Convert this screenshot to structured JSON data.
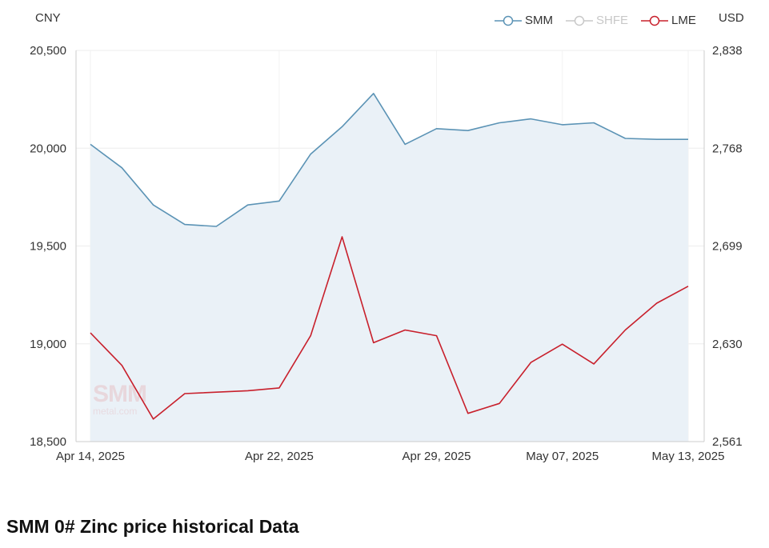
{
  "page": {
    "title": "SMM 0# Zinc price historical Data",
    "left_unit": "CNY",
    "right_unit": "USD",
    "watermark": {
      "main": "SMM",
      "sub": "metal.com"
    }
  },
  "legend": [
    {
      "label": "SMM",
      "color": "#5b93b5",
      "active": true
    },
    {
      "label": "SHFE",
      "color": "#c8c8c8",
      "active": false
    },
    {
      "label": "LME",
      "color": "#c8202c",
      "active": true
    }
  ],
  "chart_data": {
    "type": "line",
    "x": [
      "Apr 14, 2025",
      "Apr 15, 2025",
      "Apr 16, 2025",
      "Apr 17, 2025",
      "Apr 18, 2025",
      "Apr 21, 2025",
      "Apr 22, 2025",
      "Apr 23, 2025",
      "Apr 24, 2025",
      "Apr 25, 2025",
      "Apr 28, 2025",
      "Apr 29, 2025",
      "Apr 30, 2025",
      "May 05, 2025",
      "May 06, 2025",
      "May 07, 2025",
      "May 08, 2025",
      "May 09, 2025",
      "May 12, 2025",
      "May 13, 2025"
    ],
    "x_tick_labels": [
      "Apr 14, 2025",
      "Apr 22, 2025",
      "Apr 29, 2025",
      "May 07, 2025",
      "May 13, 2025"
    ],
    "y_left": {
      "label": "CNY",
      "range": [
        18500,
        20500
      ],
      "ticks": [
        "18,500",
        "19,000",
        "19,500",
        "20,000",
        "20,500"
      ]
    },
    "y_right": {
      "label": "USD",
      "range": [
        2561,
        2838
      ],
      "ticks": [
        "2,561",
        "2,630",
        "2,699",
        "2,768",
        "2,838"
      ]
    },
    "series": [
      {
        "name": "SMM",
        "axis": "left",
        "color": "#5b93b5",
        "fill": "#eaf1f7",
        "values": [
          20020,
          19900,
          19710,
          19610,
          19600,
          19710,
          19730,
          19970,
          20110,
          20280,
          20020,
          20100,
          20090,
          20130,
          20150,
          20120,
          20130,
          20050,
          20045,
          20045
        ]
      },
      {
        "name": "LME",
        "axis": "right",
        "color": "#c8202c",
        "values": [
          2638,
          2615,
          2577,
          2595,
          null,
          2597,
          2599,
          2636,
          2706,
          2631,
          2640,
          2636,
          2581,
          2588,
          2617,
          2630,
          2616,
          2640,
          2659,
          2671
        ]
      }
    ],
    "grid": true,
    "legend_position": "top-right"
  }
}
